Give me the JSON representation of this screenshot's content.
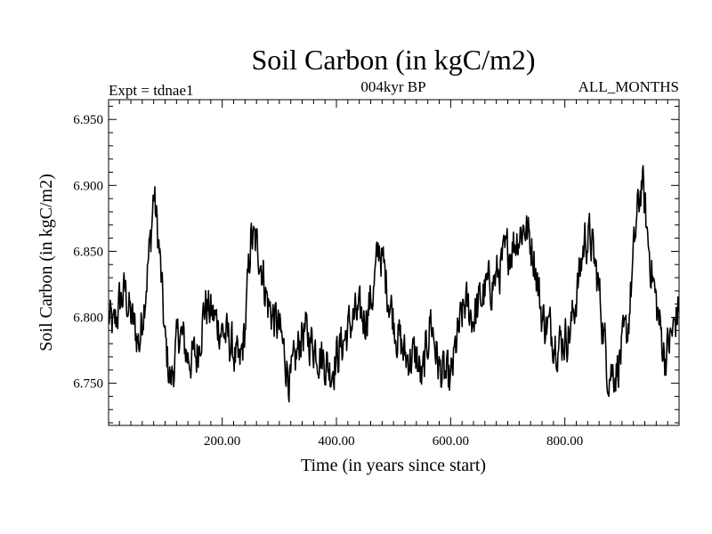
{
  "chart_data": {
    "type": "line",
    "title": "Soil Carbon (in kgC/m2)",
    "subtitle_left": "Expt = tdnae1",
    "subtitle_center": "004kyr BP",
    "subtitle_right": "ALL_MONTHS",
    "xlabel": "Time (in years since start)",
    "ylabel": "Soil Carbon (in kgC/m2)",
    "xlim": [
      1,
      1000
    ],
    "ylim": [
      6.718,
      6.965
    ],
    "xticks": [
      200,
      400,
      600,
      800
    ],
    "xtick_labels": [
      "200.00",
      "400.00",
      "600.00",
      "800.00"
    ],
    "yticks": [
      6.75,
      6.8,
      6.85,
      6.9,
      6.95
    ],
    "ytick_labels": [
      "6.750",
      "6.800",
      "6.850",
      "6.900",
      "6.950"
    ],
    "x_start": 1,
    "x_step": 1,
    "n_points": 1000,
    "series_anchor_points": {
      "x": [
        1,
        10,
        20,
        30,
        40,
        55,
        65,
        75,
        80,
        90,
        100,
        110,
        125,
        140,
        155,
        170,
        185,
        200,
        215,
        230,
        240,
        250,
        265,
        280,
        300,
        320,
        340,
        360,
        375,
        390,
        410,
        430,
        450,
        465,
        475,
        490,
        505,
        520,
        540,
        550,
        565,
        580,
        600,
        610,
        625,
        640,
        660,
        680,
        700,
        715,
        730,
        745,
        760,
        775,
        790,
        810,
        825,
        835,
        845,
        860,
        875,
        890,
        910,
        925,
        935,
        945,
        960,
        975,
        990,
        1000
      ],
      "y": [
        6.8,
        6.79,
        6.81,
        6.82,
        6.8,
        6.78,
        6.82,
        6.86,
        6.895,
        6.85,
        6.78,
        6.75,
        6.79,
        6.77,
        6.77,
        6.81,
        6.8,
        6.79,
        6.78,
        6.76,
        6.79,
        6.86,
        6.85,
        6.81,
        6.79,
        6.75,
        6.79,
        6.78,
        6.77,
        6.76,
        6.78,
        6.8,
        6.8,
        6.82,
        6.855,
        6.82,
        6.79,
        6.77,
        6.77,
        6.75,
        6.8,
        6.76,
        6.75,
        6.78,
        6.81,
        6.8,
        6.82,
        6.83,
        6.85,
        6.86,
        6.87,
        6.85,
        6.8,
        6.79,
        6.78,
        6.79,
        6.83,
        6.86,
        6.86,
        6.82,
        6.76,
        6.76,
        6.79,
        6.87,
        6.905,
        6.86,
        6.81,
        6.77,
        6.79,
        6.81
      ]
    },
    "noise_amplitude": 0.028,
    "grid": false,
    "legend": "none"
  }
}
